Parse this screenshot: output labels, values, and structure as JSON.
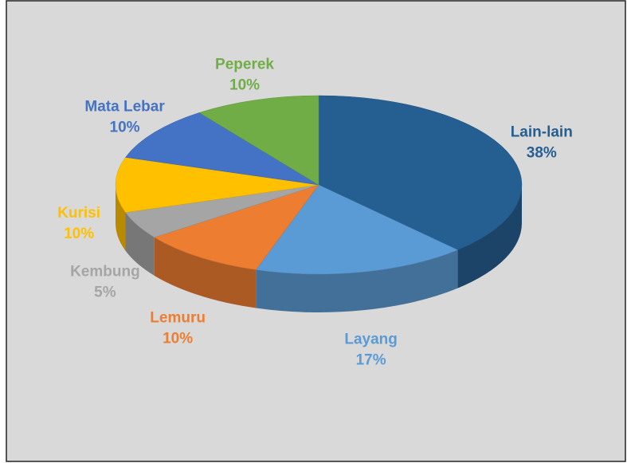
{
  "chart_data": {
    "type": "pie3d",
    "categories": [
      "Lain-lain",
      "Layang",
      "Lemuru",
      "Kembung",
      "Kurisi",
      "Mata Lebar",
      "Peperek"
    ],
    "values": [
      38,
      17,
      10,
      5,
      10,
      10,
      10
    ],
    "value_labels": [
      "38%",
      "17%",
      "10%",
      "5%",
      "10%",
      "10%",
      "10%"
    ],
    "colors": [
      "#255e91",
      "#5b9bd5",
      "#ed7d31",
      "#a5a5a5",
      "#ffc000",
      "#4472c4",
      "#70ad47"
    ]
  }
}
